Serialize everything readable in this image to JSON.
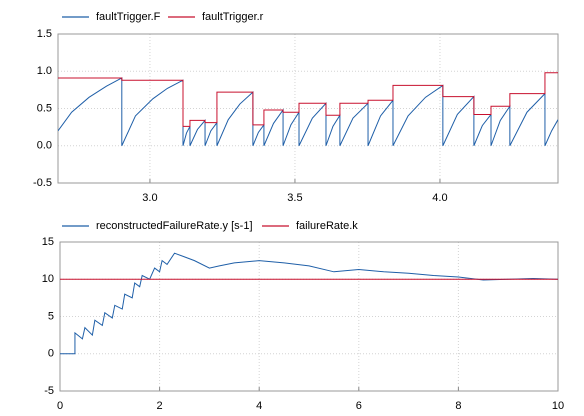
{
  "chart_data": [
    {
      "type": "line",
      "series": [
        {
          "name": "faultTrigger.F",
          "color": "#1f5fa8",
          "x": [
            2.683,
            2.73,
            2.79,
            2.85,
            2.903,
            2.903,
            2.95,
            3.01,
            3.06,
            3.114,
            3.114,
            3.126,
            3.138,
            3.138,
            3.164,
            3.19,
            3.19,
            3.21,
            3.231,
            3.231,
            3.27,
            3.31,
            3.355,
            3.355,
            3.374,
            3.393,
            3.393,
            3.426,
            3.459,
            3.459,
            3.486,
            3.514,
            3.514,
            3.56,
            3.607,
            3.607,
            3.631,
            3.655,
            3.655,
            3.7,
            3.752,
            3.752,
            3.795,
            3.838,
            3.838,
            3.89,
            3.95,
            4.01,
            4.01,
            4.06,
            4.117,
            4.117,
            4.146,
            4.176,
            4.176,
            4.208,
            4.241,
            4.241,
            4.3,
            4.362,
            4.362,
            4.385,
            4.407
          ],
          "values": [
            0.2,
            0.45,
            0.65,
            0.8,
            0.91,
            0,
            0.4,
            0.63,
            0.77,
            0.88,
            0,
            0.17,
            0.26,
            0,
            0.22,
            0.34,
            0,
            0.2,
            0.31,
            0,
            0.35,
            0.56,
            0.72,
            0,
            0.18,
            0.28,
            0,
            0.3,
            0.48,
            0,
            0.28,
            0.45,
            0,
            0.37,
            0.57,
            0,
            0.26,
            0.41,
            0,
            0.37,
            0.57,
            0,
            0.4,
            0.61,
            0,
            0.4,
            0.65,
            0.81,
            0,
            0.42,
            0.66,
            0,
            0.27,
            0.42,
            0,
            0.34,
            0.53,
            0,
            0.45,
            0.7,
            0,
            0.2,
            0.35
          ]
        },
        {
          "name": "faultTrigger.r",
          "color": "#c8102e",
          "x": [
            2.683,
            2.903,
            2.903,
            3.114,
            3.114,
            3.138,
            3.138,
            3.19,
            3.19,
            3.231,
            3.231,
            3.355,
            3.355,
            3.393,
            3.393,
            3.459,
            3.459,
            3.514,
            3.514,
            3.607,
            3.607,
            3.655,
            3.655,
            3.752,
            3.752,
            3.838,
            3.838,
            4.01,
            4.01,
            4.117,
            4.117,
            4.176,
            4.176,
            4.241,
            4.241,
            4.362,
            4.362,
            4.407
          ],
          "values": [
            0.91,
            0.91,
            0.88,
            0.88,
            0.26,
            0.26,
            0.34,
            0.34,
            0.31,
            0.31,
            0.72,
            0.72,
            0.28,
            0.28,
            0.48,
            0.48,
            0.45,
            0.45,
            0.57,
            0.57,
            0.41,
            0.41,
            0.57,
            0.57,
            0.61,
            0.61,
            0.81,
            0.81,
            0.66,
            0.66,
            0.42,
            0.42,
            0.53,
            0.53,
            0.7,
            0.7,
            0.98,
            0.98
          ]
        }
      ],
      "xlim": [
        2.683,
        4.407
      ],
      "xticks": [
        {
          "value": 3,
          "label": "3.0"
        },
        3.5,
        {
          "value": 4,
          "label": "4.0"
        }
      ],
      "ylim": [
        -0.5,
        1.5
      ],
      "yticks": [
        -0.5,
        {
          "value": 0,
          "label": "0.0"
        },
        0.5,
        {
          "value": 1,
          "label": "1.0"
        },
        1.5
      ],
      "grid": true
    },
    {
      "type": "line",
      "series": [
        {
          "name": "reconstructedFailureRate.y [s-1]",
          "color": "#1f5fa8",
          "x": [
            0,
            0.3,
            0.3,
            0.45,
            0.5,
            0.65,
            0.7,
            0.85,
            0.9,
            1.05,
            1.1,
            1.25,
            1.3,
            1.45,
            1.5,
            1.6,
            1.65,
            1.8,
            1.9,
            2.0,
            2.05,
            2.15,
            2.3,
            2.5,
            2.7,
            3.0,
            3.2,
            3.5,
            4.0,
            4.5,
            5.0,
            5.5,
            6.0,
            6.5,
            7.0,
            7.5,
            8.0,
            8.5,
            9.0,
            9.5,
            10
          ],
          "values": [
            0,
            0,
            2.8,
            2,
            3.5,
            2.5,
            4.5,
            3.8,
            5.5,
            4.8,
            6.5,
            6,
            8,
            7.5,
            9.5,
            9,
            10.5,
            10,
            11.5,
            11,
            12.5,
            12,
            13.5,
            13,
            12.5,
            11.5,
            11.8,
            12.2,
            12.5,
            12.2,
            11.8,
            11,
            11.3,
            11,
            10.8,
            10.5,
            10.3,
            9.9,
            10,
            10.1,
            10
          ]
        },
        {
          "name": "failureRate.k",
          "color": "#c8102e",
          "x": [
            0,
            10
          ],
          "values": [
            10,
            10
          ]
        }
      ],
      "xlim": [
        0,
        10
      ],
      "xticks": [
        0,
        2,
        4,
        6,
        8,
        10
      ],
      "ylim": [
        -5,
        15
      ],
      "yticks": [
        -5,
        0,
        5,
        10,
        15
      ],
      "grid": true
    }
  ]
}
